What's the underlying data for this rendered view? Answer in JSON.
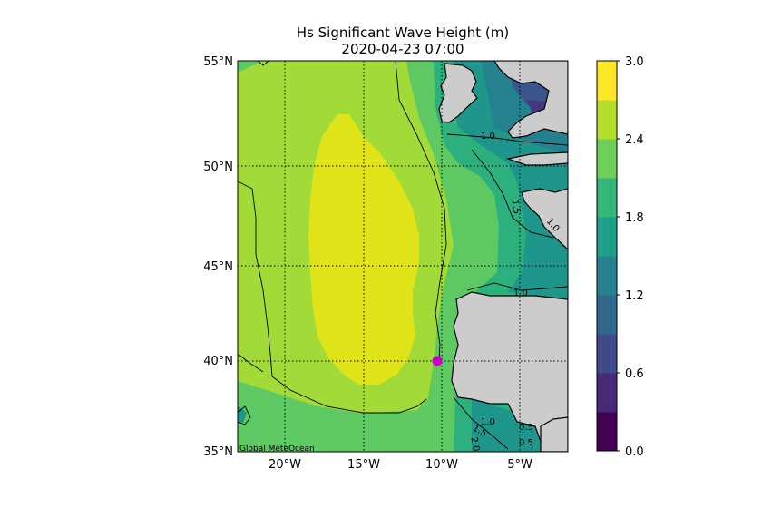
{
  "map": {
    "title": "Hs Significant Wave Height (m)",
    "subtitle": "2020-04-23 07:00",
    "credit": "Global MeteOcean",
    "lon_range": [
      -23,
      -2
    ],
    "lat_range": [
      35,
      55
    ],
    "lat_ticks": [
      "55°N",
      "50°N",
      "45°N",
      "40°N",
      "35°N"
    ],
    "lon_ticks": [
      "20°W",
      "15°W",
      "10°W",
      "5°W"
    ],
    "grid": "dotted",
    "marker": {
      "lon": -10.3,
      "lat": 40.0,
      "color": "#cc00cc"
    },
    "contour_labels": [
      "1.0",
      "1.5",
      "1.0",
      "1.0",
      "1.0",
      "1.5",
      "2.0",
      "0.5",
      "0.5"
    ],
    "land_color": "#cccccc",
    "colors": {
      "yellow": "#dfe318",
      "lime": "#a2da37",
      "green": "#5ec962",
      "teal_green": "#2cb17e",
      "teal": "#1f968b",
      "blue_teal": "#26818e",
      "blue": "#3a548c",
      "indigo": "#453781",
      "purple": "#440154"
    }
  },
  "colorbar": {
    "min": 0.0,
    "max": 3.0,
    "tick_labels": [
      "3.0",
      "2.4",
      "1.8",
      "1.2",
      "0.6",
      "0.0"
    ],
    "levels": [
      "#440154",
      "#482878",
      "#3e4a89",
      "#31688e",
      "#26828e",
      "#1f9e89",
      "#35b779",
      "#6ece58",
      "#b5de2b",
      "#fde725"
    ]
  }
}
